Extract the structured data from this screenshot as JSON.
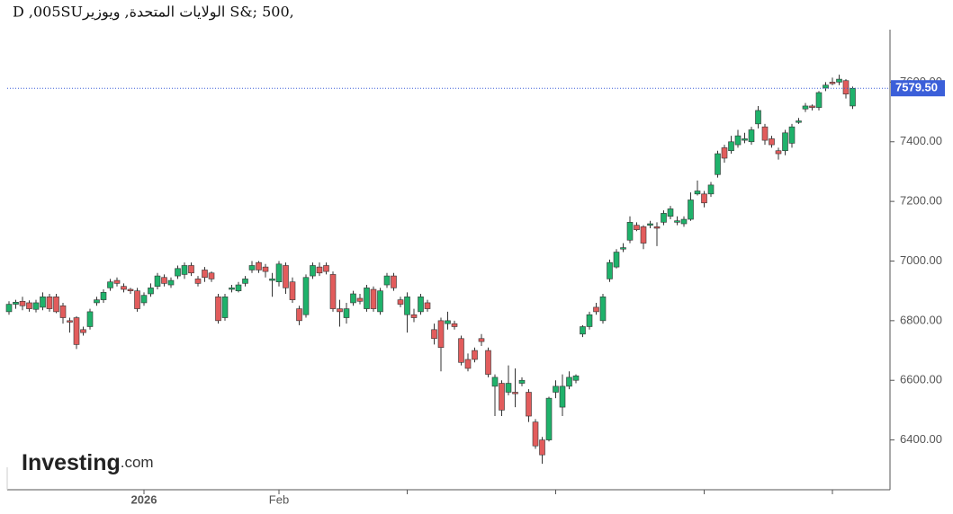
{
  "chart_data": {
    "type": "candlestick",
    "title": "D ,005SUالولايات المتحدة, ويوزير S&; 500,",
    "brand": "Investing",
    "brand_suffix": ".com",
    "up_color": "#1fb26b",
    "down_color": "#e25c5c",
    "price_line_color": "#3b5fd9",
    "current_price": {
      "value": 7579.5,
      "label": "7579.50"
    },
    "ylim": [
      6233,
      7776
    ],
    "yticks": [
      {
        "value": 6400,
        "label": "6400.00"
      },
      {
        "value": 6600,
        "label": "6600.00"
      },
      {
        "value": 6800,
        "label": "6800.00"
      },
      {
        "value": 7000,
        "label": "7000.00"
      },
      {
        "value": 7200,
        "label": "7200.00"
      },
      {
        "value": 7400,
        "label": "7400.00"
      },
      {
        "value": 7600,
        "label": "7600.00"
      }
    ],
    "xticks": [
      {
        "value": 20,
        "label": "2026"
      },
      {
        "value": 40,
        "label": "Feb"
      },
      59,
      81,
      103,
      122
    ],
    "open": [
      6830,
      6855,
      6865,
      6860,
      6838,
      6845,
      6880,
      6880,
      6850,
      6800,
      6810,
      6770,
      6780,
      6860,
      6870,
      6910,
      6935,
      6915,
      6905,
      6900,
      6860,
      6890,
      6915,
      6945,
      6920,
      6950,
      6955,
      6985,
      6940,
      6970,
      6960,
      6880,
      6810,
      6905,
      6900,
      6925,
      6970,
      6995,
      6980,
      6935,
      6930,
      6985,
      6930,
      6840,
      6820,
      6950,
      6980,
      6985,
      6955,
      6840,
      6810,
      6860,
      6875,
      6840,
      6905,
      6830,
      6920,
      6950,
      6870,
      6820,
      6820,
      6830,
      6860,
      6770,
      6800,
      6790,
      6790,
      6740,
      6670,
      6700,
      6740,
      6700,
      6580,
      6590,
      6560,
      6560,
      6590,
      6560,
      6460,
      6400,
      6400,
      6560,
      6510,
      6580,
      6600,
      6755,
      6780,
      6845,
      6800,
      6940,
      6980,
      7040,
      7070,
      7120,
      7115,
      7120,
      7115,
      7130,
      7150,
      7130,
      7125,
      7140,
      7225,
      7225,
      7225,
      7290,
      7380,
      7370,
      7390,
      7405,
      7400,
      7460,
      7450,
      7410,
      7370,
      7370,
      7395,
      7465,
      7510,
      7520,
      7515,
      7580,
      7600,
      7600,
      7605,
      7520
    ],
    "high": [
      6865,
      6870,
      6880,
      6868,
      6870,
      6895,
      6890,
      6890,
      6860,
      6810,
      6815,
      6780,
      6840,
      6880,
      6905,
      6940,
      6945,
      6925,
      6910,
      6910,
      6895,
      6925,
      6960,
      6955,
      6945,
      6985,
      6995,
      6995,
      6950,
      6980,
      6965,
      6890,
      6890,
      6920,
      6930,
      6950,
      7000,
      7000,
      6990,
      6960,
      7000,
      6995,
      6945,
      6850,
      6955,
      6995,
      6995,
      6995,
      6965,
      6870,
      6860,
      6900,
      6890,
      6920,
      6915,
      6910,
      6960,
      6960,
      6880,
      6895,
      6840,
      6890,
      6870,
      6790,
      6810,
      6830,
      6800,
      6750,
      6690,
      6710,
      6755,
      6710,
      6620,
      6600,
      6650,
      6640,
      6610,
      6570,
      6470,
      6410,
      6545,
      6600,
      6620,
      6630,
      6620,
      6785,
      6830,
      6860,
      6890,
      7005,
      7040,
      7060,
      7150,
      7130,
      7120,
      7135,
      7130,
      7170,
      7185,
      7150,
      7150,
      7230,
      7270,
      7235,
      7265,
      7370,
      7390,
      7420,
      7440,
      7430,
      7450,
      7520,
      7460,
      7420,
      7380,
      7440,
      7460,
      7480,
      7530,
      7525,
      7570,
      7600,
      7615,
      7625,
      7610,
      7585
    ],
    "low": [
      6820,
      6840,
      6835,
      6830,
      6828,
      6835,
      6830,
      6825,
      6790,
      6760,
      6705,
      6750,
      6770,
      6850,
      6860,
      6900,
      6915,
      6895,
      6890,
      6830,
      6850,
      6880,
      6905,
      6915,
      6910,
      6940,
      6940,
      6950,
      6915,
      6930,
      6930,
      6790,
      6800,
      6895,
      6895,
      6915,
      6960,
      6960,
      6945,
      6880,
      6915,
      6890,
      6860,
      6785,
      6810,
      6940,
      6950,
      6955,
      6830,
      6780,
      6790,
      6850,
      6855,
      6830,
      6830,
      6820,
      6910,
      6900,
      6845,
      6760,
      6795,
      6820,
      6830,
      6720,
      6630,
      6770,
      6770,
      6650,
      6630,
      6660,
      6715,
      6610,
      6480,
      6480,
      6550,
      6510,
      6580,
      6460,
      6370,
      6320,
      6395,
      6540,
      6480,
      6570,
      6590,
      6745,
      6770,
      6820,
      6790,
      6930,
      6975,
      7030,
      7060,
      7100,
      7040,
      7110,
      7050,
      7120,
      7140,
      7120,
      7115,
      7135,
      7220,
      7180,
      7215,
      7280,
      7330,
      7360,
      7380,
      7395,
      7390,
      7445,
      7390,
      7380,
      7340,
      7355,
      7380,
      7460,
      7500,
      7505,
      7505,
      7570,
      7590,
      7590,
      7545,
      7510
    ],
    "close": [
      6855,
      6862,
      6850,
      6840,
      6860,
      6880,
      6840,
      6830,
      6810,
      6795,
      6720,
      6760,
      6830,
      6870,
      6895,
      6930,
      6925,
      6905,
      6900,
      6840,
      6885,
      6910,
      6950,
      6925,
      6935,
      6975,
      6985,
      6960,
      6925,
      6945,
      6940,
      6800,
      6880,
      6910,
      6920,
      6940,
      6985,
      6970,
      6965,
      6940,
      6990,
      6910,
      6870,
      6800,
      6945,
      6985,
      6960,
      6965,
      6840,
      6830,
      6840,
      6890,
      6865,
      6910,
      6840,
      6900,
      6950,
      6910,
      6855,
      6880,
      6810,
      6880,
      6840,
      6740,
      6710,
      6800,
      6780,
      6660,
      6640,
      6670,
      6730,
      6620,
      6610,
      6500,
      6590,
      6555,
      6600,
      6480,
      6380,
      6350,
      6540,
      6580,
      6580,
      6610,
      6615,
      6780,
      6820,
      6830,
      6880,
      6995,
      7030,
      7045,
      7130,
      7105,
      7060,
      7125,
      7110,
      7160,
      7175,
      7135,
      7140,
      7205,
      7235,
      7195,
      7255,
      7360,
      7345,
      7400,
      7420,
      7410,
      7440,
      7505,
      7405,
      7390,
      7360,
      7430,
      7450,
      7470,
      7520,
      7515,
      7565,
      7590,
      7595,
      7610,
      7560,
      7579.5
    ]
  }
}
